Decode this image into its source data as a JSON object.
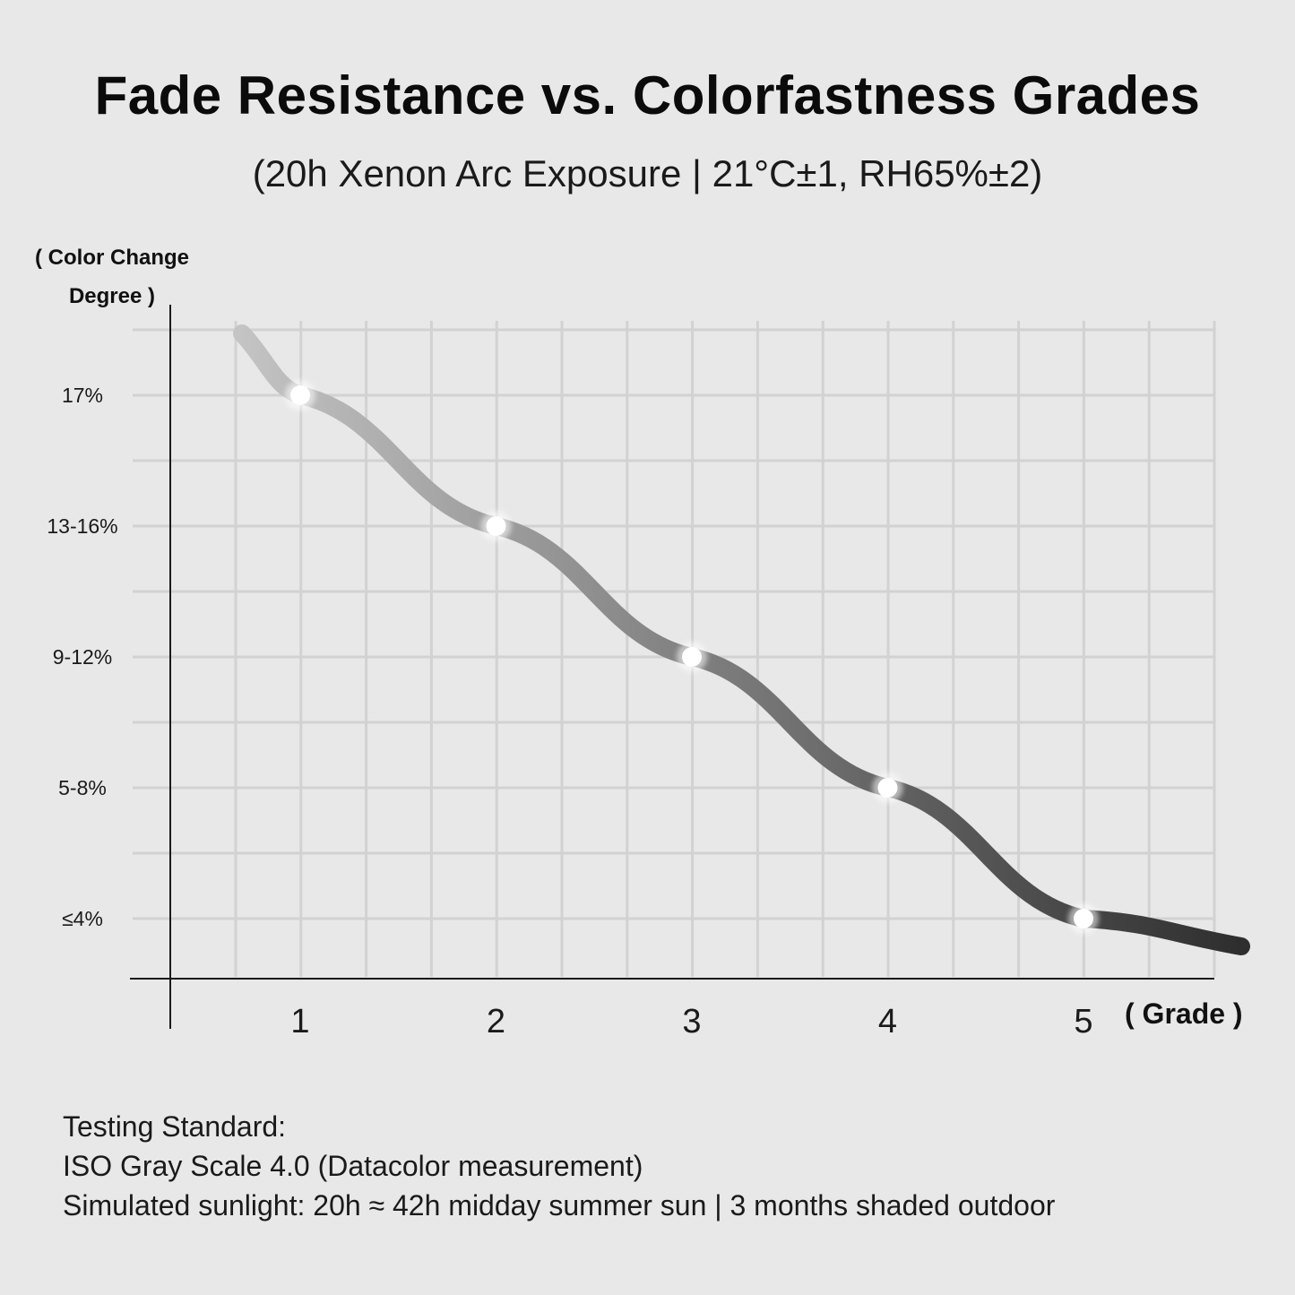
{
  "title": "Fade Resistance vs. Colorfastness Grades",
  "subtitle": "(20h Xenon Arc Exposure | 21°C±1, RH65%±2)",
  "chart_data": {
    "type": "line",
    "ylabel": "( Color Change Degree )",
    "xlabel": "( Grade )",
    "categories": [
      "1",
      "2",
      "3",
      "4",
      "5"
    ],
    "y_tick_labels": [
      "17%",
      "13-16%",
      "9-12%",
      "5-8%",
      "≤4%"
    ],
    "points": [
      {
        "x": "1",
        "y": "17%"
      },
      {
        "x": "2",
        "y": "13-16%"
      },
      {
        "x": "3",
        "y": "9-12%"
      },
      {
        "x": "4",
        "y": "5-8%"
      },
      {
        "x": "5",
        "y": "≤4%"
      }
    ],
    "grid": true,
    "colors": {
      "line_start": "#c4c4c4",
      "line_end": "#2e2e2e",
      "marker": "#ffffff",
      "grid": "#d2d2d2",
      "axis": "#1a1a1a"
    }
  },
  "footnote": {
    "line1": "Testing Standard:",
    "line2": "ISO Gray Scale 4.0 (Datacolor measurement)",
    "line3": "Simulated sunlight: 20h ≈ 42h midday summer sun | 3 months shaded outdoor"
  }
}
